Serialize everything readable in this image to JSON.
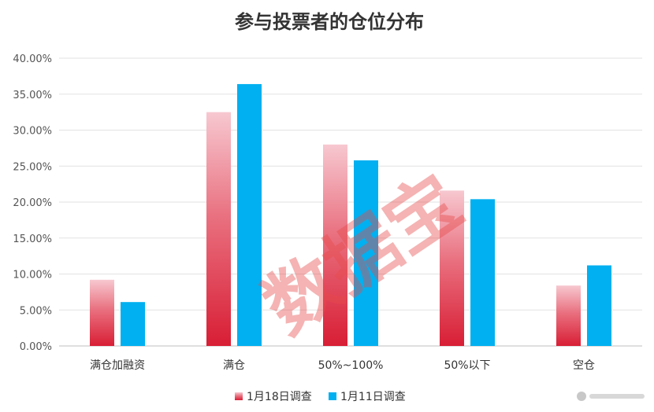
{
  "chart_data": {
    "type": "bar",
    "title": "参与投票者的仓位分布",
    "categories": [
      "满仓加融资",
      "满仓",
      "50%~100%",
      "50%以下",
      "空仓"
    ],
    "series": [
      {
        "name": "1月18日调查",
        "values": [
          9.2,
          32.5,
          28.0,
          21.6,
          8.4
        ],
        "color": "#d81e35"
      },
      {
        "name": "1月11日调查",
        "values": [
          6.1,
          36.4,
          25.8,
          20.4,
          11.2
        ],
        "color": "#00b0f0"
      }
    ],
    "y_ticks": [
      "0.00%",
      "5.00%",
      "10.00%",
      "15.00%",
      "20.00%",
      "25.00%",
      "30.00%",
      "35.00%",
      "40.00%"
    ],
    "ylim": [
      0,
      40
    ],
    "grid": true,
    "legend_position": "bottom"
  },
  "watermark": "数据宝"
}
